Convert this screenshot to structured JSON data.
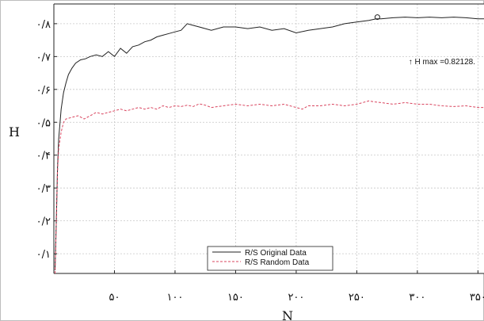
{
  "chart_data": {
    "type": "line",
    "xlabel": "N",
    "ylabel": "H",
    "xlim": [
      0,
      355
    ],
    "ylim": [
      0.04,
      0.86
    ],
    "grid": true,
    "x_ticks": [
      {
        "value": 50,
        "label": "۵۰"
      },
      {
        "value": 100,
        "label": "۱۰۰"
      },
      {
        "value": 150,
        "label": "۱۵۰"
      },
      {
        "value": 200,
        "label": "۲۰۰"
      },
      {
        "value": 250,
        "label": "۲۵۰"
      },
      {
        "value": 300,
        "label": "۳۰۰"
      },
      {
        "value": 350,
        "label": "۳۵۰"
      }
    ],
    "y_ticks": [
      {
        "value": 0.1,
        "label": "۰/۱"
      },
      {
        "value": 0.2,
        "label": "۰/۲"
      },
      {
        "value": 0.3,
        "label": "۰/۳"
      },
      {
        "value": 0.4,
        "label": "۰/۴"
      },
      {
        "value": 0.5,
        "label": "۰/۵"
      },
      {
        "value": 0.6,
        "label": "۰/۶"
      },
      {
        "value": 0.7,
        "label": "۰/۷"
      },
      {
        "value": 0.8,
        "label": "۰/۸"
      }
    ],
    "legend_position": "bottom-center",
    "series": [
      {
        "name": "R/S Original Data",
        "color": "#222222",
        "style": "solid",
        "points": [
          [
            1,
            0.05
          ],
          [
            2,
            0.2
          ],
          [
            3,
            0.36
          ],
          [
            4,
            0.45
          ],
          [
            6,
            0.54
          ],
          [
            8,
            0.59
          ],
          [
            10,
            0.62
          ],
          [
            12,
            0.645
          ],
          [
            15,
            0.665
          ],
          [
            18,
            0.68
          ],
          [
            22,
            0.69
          ],
          [
            26,
            0.693
          ],
          [
            30,
            0.7
          ],
          [
            35,
            0.705
          ],
          [
            40,
            0.7
          ],
          [
            45,
            0.715
          ],
          [
            50,
            0.7
          ],
          [
            55,
            0.725
          ],
          [
            60,
            0.71
          ],
          [
            65,
            0.73
          ],
          [
            70,
            0.735
          ],
          [
            75,
            0.745
          ],
          [
            80,
            0.75
          ],
          [
            85,
            0.76
          ],
          [
            90,
            0.765
          ],
          [
            95,
            0.77
          ],
          [
            100,
            0.775
          ],
          [
            105,
            0.78
          ],
          [
            110,
            0.8
          ],
          [
            115,
            0.795
          ],
          [
            120,
            0.79
          ],
          [
            125,
            0.785
          ],
          [
            130,
            0.78
          ],
          [
            140,
            0.79
          ],
          [
            150,
            0.79
          ],
          [
            160,
            0.785
          ],
          [
            170,
            0.79
          ],
          [
            180,
            0.78
          ],
          [
            190,
            0.785
          ],
          [
            200,
            0.772
          ],
          [
            210,
            0.78
          ],
          [
            220,
            0.785
          ],
          [
            230,
            0.79
          ],
          [
            240,
            0.8
          ],
          [
            250,
            0.805
          ],
          [
            260,
            0.81
          ],
          [
            266,
            0.815
          ],
          [
            270,
            0.815
          ],
          [
            280,
            0.818
          ],
          [
            290,
            0.82
          ],
          [
            300,
            0.818
          ],
          [
            310,
            0.82
          ],
          [
            320,
            0.818
          ],
          [
            330,
            0.82
          ],
          [
            340,
            0.818
          ],
          [
            350,
            0.815
          ],
          [
            355,
            0.815
          ]
        ]
      },
      {
        "name": "R/S Random Data",
        "color": "#d9455f",
        "style": "dashed",
        "points": [
          [
            1,
            0.04
          ],
          [
            2,
            0.2
          ],
          [
            3,
            0.35
          ],
          [
            4,
            0.42
          ],
          [
            6,
            0.47
          ],
          [
            8,
            0.5
          ],
          [
            10,
            0.51
          ],
          [
            15,
            0.515
          ],
          [
            20,
            0.52
          ],
          [
            25,
            0.51
          ],
          [
            30,
            0.52
          ],
          [
            35,
            0.53
          ],
          [
            40,
            0.525
          ],
          [
            45,
            0.53
          ],
          [
            50,
            0.535
          ],
          [
            55,
            0.54
          ],
          [
            60,
            0.535
          ],
          [
            65,
            0.54
          ],
          [
            70,
            0.545
          ],
          [
            75,
            0.54
          ],
          [
            80,
            0.545
          ],
          [
            85,
            0.54
          ],
          [
            90,
            0.55
          ],
          [
            95,
            0.545
          ],
          [
            100,
            0.55
          ],
          [
            105,
            0.548
          ],
          [
            110,
            0.552
          ],
          [
            115,
            0.548
          ],
          [
            120,
            0.556
          ],
          [
            125,
            0.552
          ],
          [
            130,
            0.545
          ],
          [
            140,
            0.55
          ],
          [
            150,
            0.555
          ],
          [
            160,
            0.55
          ],
          [
            170,
            0.555
          ],
          [
            180,
            0.55
          ],
          [
            190,
            0.555
          ],
          [
            200,
            0.545
          ],
          [
            205,
            0.54
          ],
          [
            210,
            0.55
          ],
          [
            220,
            0.55
          ],
          [
            230,
            0.555
          ],
          [
            240,
            0.55
          ],
          [
            250,
            0.555
          ],
          [
            260,
            0.565
          ],
          [
            265,
            0.562
          ],
          [
            270,
            0.56
          ],
          [
            280,
            0.555
          ],
          [
            290,
            0.56
          ],
          [
            300,
            0.555
          ],
          [
            310,
            0.555
          ],
          [
            320,
            0.55
          ],
          [
            330,
            0.548
          ],
          [
            340,
            0.55
          ],
          [
            350,
            0.545
          ],
          [
            355,
            0.545
          ]
        ]
      }
    ],
    "annotations": [
      {
        "text": "↑ H max =0.82128.",
        "x": 267,
        "y": 0.82,
        "marker": "circle"
      }
    ]
  }
}
